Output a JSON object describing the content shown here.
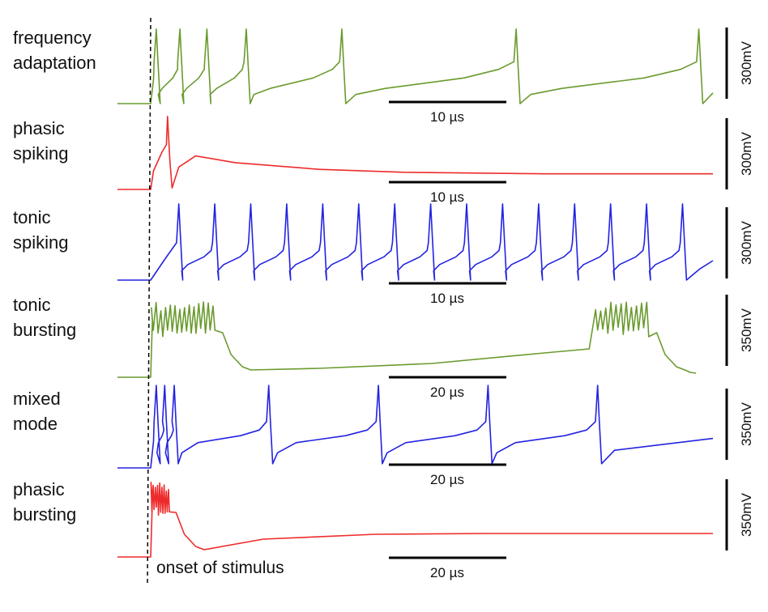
{
  "annotation": {
    "onset_label": "onset of stimulus"
  },
  "chart_data": [
    {
      "type": "line",
      "row_label": [
        "frequency",
        "adaptation"
      ],
      "color": "#6a9a2e",
      "pattern": "adaptation",
      "spike_times": [
        0.01,
        0.052,
        0.1,
        0.17,
        0.34,
        0.65,
        0.975
      ],
      "time_scale_bar": "10 µs",
      "voltage_scale_bar": "300mV"
    },
    {
      "type": "line",
      "row_label": [
        "phasic",
        "spiking"
      ],
      "color": "#ee2b2b",
      "pattern": "phasic_spike",
      "spike_times": [
        0.03
      ],
      "time_scale_bar": "10 µs",
      "voltage_scale_bar": "300mV"
    },
    {
      "type": "line",
      "row_label": [
        "tonic",
        "spiking"
      ],
      "color": "#2323e0",
      "pattern": "tonic",
      "spike_times": [
        0.05,
        0.114,
        0.178,
        0.242,
        0.306,
        0.37,
        0.434,
        0.498,
        0.562,
        0.626,
        0.69,
        0.754,
        0.818,
        0.882,
        0.946
      ],
      "time_scale_bar": "10 µs",
      "voltage_scale_bar": "300mV"
    },
    {
      "type": "line",
      "row_label": [
        "tonic",
        "bursting"
      ],
      "color": "#6a9a2e",
      "pattern": "tonic_burst",
      "bursts": [
        [
          0.0,
          0.118
        ],
        [
          0.79,
          0.89
        ]
      ],
      "time_scale_bar": "20 µs",
      "voltage_scale_bar": "350mV"
    },
    {
      "type": "line",
      "row_label": [
        "mixed",
        "mode"
      ],
      "color": "#2323e0",
      "pattern": "mixed",
      "spike_times": [
        0.01,
        0.025,
        0.042,
        0.21,
        0.405,
        0.6,
        0.795
      ],
      "time_scale_bar": "20 µs",
      "voltage_scale_bar": "350mV"
    },
    {
      "type": "line",
      "row_label": [
        "phasic",
        "bursting"
      ],
      "color": "#ee2b2b",
      "pattern": "phasic_burst",
      "bursts": [
        [
          0.0,
          0.035
        ]
      ],
      "time_scale_bar": "20 µs",
      "voltage_scale_bar": "350mV"
    }
  ]
}
